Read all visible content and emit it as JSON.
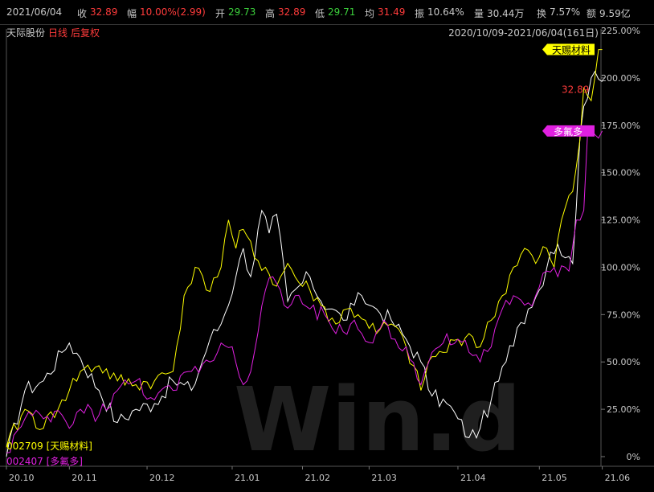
{
  "header": {
    "date": "2021/06/04",
    "close_label": "收",
    "close": "32.89",
    "change_label": "幅",
    "change": "10.00%(2.99)",
    "open_label": "开",
    "open": "29.73",
    "high_label": "高",
    "high": "32.89",
    "low_label": "低",
    "low": "29.71",
    "avg_label": "均",
    "avg": "31.49",
    "amp_label": "振",
    "amp": "10.64%",
    "vol_label": "量",
    "vol": "30.44万",
    "turn_label": "换",
    "turn": "7.57%",
    "amt_label": "额",
    "amt": "9.59亿"
  },
  "title": {
    "name": "天际股份",
    "period": "日线",
    "adjust": "后复权"
  },
  "range_text": "2020/10/09-2021/06/04(161日)",
  "watermark": "Win.d",
  "colors": {
    "main": "#ffffff",
    "tianci": "#ffff00",
    "duofuduo": "#e020e0",
    "price": "#ff3b3b"
  },
  "legend": [
    {
      "text": "002709 [天赐材料]",
      "color": "#ffff00"
    },
    {
      "text": "002407 [多氟多]",
      "color": "#e020e0"
    }
  ],
  "end_labels": [
    {
      "text": "天赐材料",
      "color": "#ffff00"
    },
    {
      "text": "32.89",
      "color": "#ff3b3b"
    },
    {
      "text": "多氟多",
      "color": "#e020e0"
    }
  ],
  "chart_data": {
    "type": "line",
    "ylim": [
      0,
      225
    ],
    "y_ticks": [
      "0%",
      "25.00%",
      "50.00%",
      "75.00%",
      "100.00%",
      "125.00%",
      "150.00%",
      "175.00%",
      "200.00%",
      "225.00%"
    ],
    "x_ticks": [
      "20.10",
      "20.11",
      "20.12",
      "21.01",
      "21.02",
      "21.03",
      "21.04",
      "21.05",
      "21.06"
    ],
    "x_tick_index": [
      0,
      17,
      38,
      61,
      80,
      98,
      122,
      144,
      161
    ],
    "n_points": 161,
    "series": [
      {
        "name": "天际股份",
        "color": "#ffffff",
        "anchors": [
          [
            0,
            0
          ],
          [
            5,
            35
          ],
          [
            10,
            40
          ],
          [
            15,
            55
          ],
          [
            17,
            60
          ],
          [
            20,
            52
          ],
          [
            25,
            35
          ],
          [
            30,
            18
          ],
          [
            35,
            25
          ],
          [
            40,
            28
          ],
          [
            45,
            40
          ],
          [
            50,
            35
          ],
          [
            55,
            62
          ],
          [
            58,
            70
          ],
          [
            62,
            95
          ],
          [
            64,
            110
          ],
          [
            66,
            95
          ],
          [
            69,
            130
          ],
          [
            71,
            118
          ],
          [
            73,
            128
          ],
          [
            76,
            82
          ],
          [
            79,
            90
          ],
          [
            82,
            95
          ],
          [
            85,
            82
          ],
          [
            88,
            78
          ],
          [
            91,
            72
          ],
          [
            94,
            80
          ],
          [
            96,
            85
          ],
          [
            98,
            80
          ],
          [
            100,
            78
          ],
          [
            104,
            72
          ],
          [
            108,
            62
          ],
          [
            112,
            50
          ],
          [
            115,
            32
          ],
          [
            119,
            28
          ],
          [
            122,
            20
          ],
          [
            125,
            10
          ],
          [
            128,
            15
          ],
          [
            131,
            30
          ],
          [
            135,
            50
          ],
          [
            138,
            68
          ],
          [
            141,
            78
          ],
          [
            144,
            88
          ],
          [
            147,
            108
          ],
          [
            149,
            112
          ],
          [
            151,
            105
          ],
          [
            153,
            102
          ],
          [
            155,
            170
          ],
          [
            156,
            185
          ],
          [
            158,
            200
          ],
          [
            161,
            198
          ]
        ]
      },
      {
        "name": "天赐材料",
        "color": "#ffff00",
        "anchors": [
          [
            0,
            5
          ],
          [
            5,
            25
          ],
          [
            10,
            15
          ],
          [
            15,
            30
          ],
          [
            17,
            35
          ],
          [
            20,
            45
          ],
          [
            25,
            48
          ],
          [
            30,
            40
          ],
          [
            35,
            38
          ],
          [
            40,
            40
          ],
          [
            45,
            45
          ],
          [
            48,
            85
          ],
          [
            51,
            100
          ],
          [
            54,
            88
          ],
          [
            58,
            100
          ],
          [
            60,
            125
          ],
          [
            62,
            110
          ],
          [
            64,
            120
          ],
          [
            67,
            105
          ],
          [
            70,
            100
          ],
          [
            73,
            90
          ],
          [
            76,
            102
          ],
          [
            79,
            92
          ],
          [
            82,
            88
          ],
          [
            85,
            80
          ],
          [
            89,
            70
          ],
          [
            92,
            78
          ],
          [
            95,
            75
          ],
          [
            97,
            72
          ],
          [
            100,
            65
          ],
          [
            104,
            70
          ],
          [
            108,
            58
          ],
          [
            112,
            35
          ],
          [
            114,
            50
          ],
          [
            118,
            55
          ],
          [
            122,
            62
          ],
          [
            125,
            65
          ],
          [
            128,
            58
          ],
          [
            131,
            72
          ],
          [
            134,
            85
          ],
          [
            137,
            100
          ],
          [
            140,
            110
          ],
          [
            143,
            102
          ],
          [
            146,
            110
          ],
          [
            148,
            100
          ],
          [
            150,
            125
          ],
          [
            153,
            140
          ],
          [
            155,
            168
          ],
          [
            156,
            195
          ],
          [
            158,
            188
          ],
          [
            160,
            215
          ],
          [
            161,
            215
          ]
        ]
      },
      {
        "name": "多氟多",
        "color": "#e020e0",
        "anchors": [
          [
            0,
            2
          ],
          [
            5,
            20
          ],
          [
            10,
            20
          ],
          [
            15,
            22
          ],
          [
            17,
            15
          ],
          [
            20,
            25
          ],
          [
            25,
            22
          ],
          [
            30,
            35
          ],
          [
            35,
            40
          ],
          [
            40,
            30
          ],
          [
            45,
            35
          ],
          [
            50,
            45
          ],
          [
            55,
            50
          ],
          [
            58,
            60
          ],
          [
            61,
            58
          ],
          [
            64,
            38
          ],
          [
            67,
            55
          ],
          [
            70,
            88
          ],
          [
            72,
            95
          ],
          [
            75,
            80
          ],
          [
            78,
            85
          ],
          [
            82,
            78
          ],
          [
            86,
            75
          ],
          [
            89,
            65
          ],
          [
            93,
            70
          ],
          [
            96,
            65
          ],
          [
            99,
            60
          ],
          [
            102,
            72
          ],
          [
            105,
            62
          ],
          [
            108,
            58
          ],
          [
            112,
            38
          ],
          [
            115,
            55
          ],
          [
            118,
            60
          ],
          [
            122,
            62
          ],
          [
            125,
            55
          ],
          [
            128,
            50
          ],
          [
            131,
            58
          ],
          [
            134,
            78
          ],
          [
            137,
            85
          ],
          [
            140,
            80
          ],
          [
            143,
            85
          ],
          [
            146,
            98
          ],
          [
            149,
            95
          ],
          [
            151,
            100
          ],
          [
            152,
            98
          ],
          [
            154,
            125
          ],
          [
            156,
            130
          ],
          [
            157,
            170
          ],
          [
            159,
            170
          ],
          [
            161,
            172
          ]
        ]
      }
    ]
  }
}
